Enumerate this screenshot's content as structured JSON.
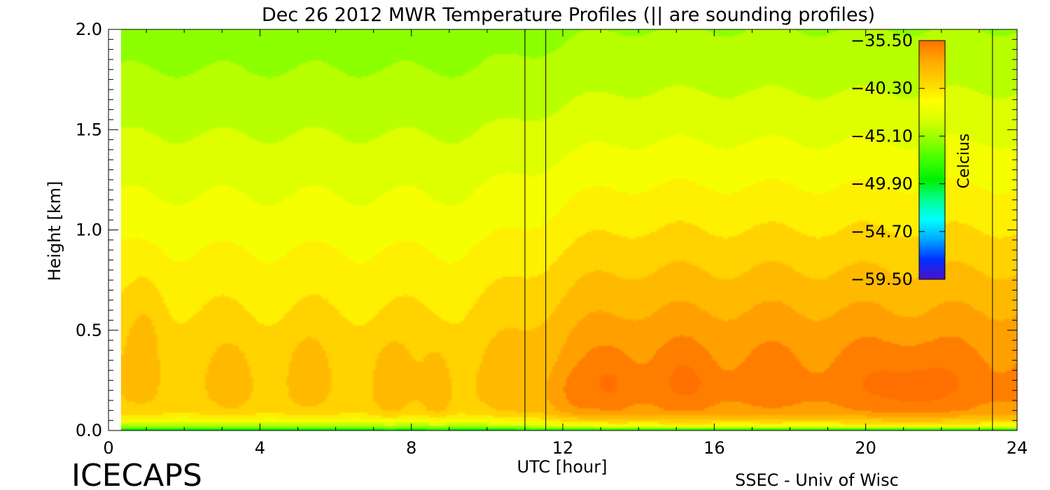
{
  "chart_data": {
    "type": "heatmap",
    "title": "Dec 26 2012 MWR Temperature Profiles (|| are sounding profiles)",
    "xlabel": "UTC [hour]",
    "ylabel": "Height [km]",
    "xlim": [
      0,
      24
    ],
    "ylim": [
      0,
      2
    ],
    "x_ticks": [
      "0",
      "4",
      "8",
      "12",
      "16",
      "20",
      "24"
    ],
    "y_ticks": [
      "0.0",
      "0.5",
      "1.0",
      "1.5",
      "2.0"
    ],
    "data_x_start": 0.33,
    "colorbar": {
      "label": "Celcius",
      "ticks": [
        "-35.50",
        "-40.30",
        "-45.10",
        "-49.90",
        "-54.70",
        "-59.50"
      ],
      "range": [
        -59.5,
        -35.5
      ],
      "colors": [
        "#4a10c8",
        "#0030ff",
        "#00a8ff",
        "#00ffff",
        "#00ff90",
        "#00f000",
        "#40ff00",
        "#90ff00",
        "#d8ff00",
        "#ffff00",
        "#ffd000",
        "#ffa800",
        "#ff7000"
      ]
    },
    "sounding_times_hours": [
      11.0,
      11.55,
      23.35
    ],
    "surface_profile": {
      "heights_km": [
        0.0,
        0.01,
        0.02,
        0.035,
        0.05,
        0.075,
        0.1,
        0.15,
        0.2,
        0.25,
        0.3,
        0.4,
        0.5,
        0.6,
        0.7,
        0.8,
        0.9,
        1.0,
        1.2,
        1.4,
        1.6,
        1.8,
        2.0
      ],
      "temps_early_c": [
        -50.5,
        -47.5,
        -45.0,
        -43.3,
        -42.0,
        -40.5,
        -39.6,
        -39.3,
        -39.2,
        -39.2,
        -39.3,
        -39.5,
        -39.8,
        -40.2,
        -40.6,
        -41.0,
        -41.4,
        -41.9,
        -42.7,
        -43.5,
        -44.3,
        -45.0,
        -45.6
      ],
      "temps_late_c": [
        -50.5,
        -46.0,
        -42.5,
        -40.5,
        -39.5,
        -38.0,
        -36.9,
        -36.4,
        -36.1,
        -36.1,
        -36.3,
        -36.7,
        -37.2,
        -37.8,
        -38.4,
        -39.0,
        -39.6,
        -40.2,
        -41.3,
        -42.4,
        -43.4,
        -44.3,
        -45.0
      ]
    },
    "warm_cores": [
      {
        "x": 1.0,
        "y": 0.5,
        "amp": 1.0,
        "sx": 0.35,
        "sy": 0.22
      },
      {
        "x": 3.3,
        "y": 0.26,
        "amp": 0.9,
        "sx": 0.35,
        "sy": 0.12
      },
      {
        "x": 5.2,
        "y": 0.3,
        "amp": 0.8,
        "sx": 0.35,
        "sy": 0.14
      },
      {
        "x": 7.4,
        "y": 0.25,
        "amp": 1.2,
        "sx": 0.3,
        "sy": 0.14
      },
      {
        "x": 8.7,
        "y": 0.22,
        "amp": 1.4,
        "sx": 0.25,
        "sy": 0.14
      },
      {
        "x": 12.3,
        "y": 0.18,
        "amp": 0.8,
        "sx": 0.35,
        "sy": 0.1
      },
      {
        "x": 13.3,
        "y": 0.25,
        "amp": 1.0,
        "sx": 0.4,
        "sy": 0.12
      },
      {
        "x": 15.3,
        "y": 0.25,
        "amp": 0.8,
        "sx": 0.45,
        "sy": 0.12
      },
      {
        "x": 21.2,
        "y": 0.22,
        "amp": 1.4,
        "sx": 0.8,
        "sy": 0.15
      }
    ]
  },
  "footer": {
    "left": "ICECAPS",
    "right": "SSEC - Univ of Wisc"
  }
}
